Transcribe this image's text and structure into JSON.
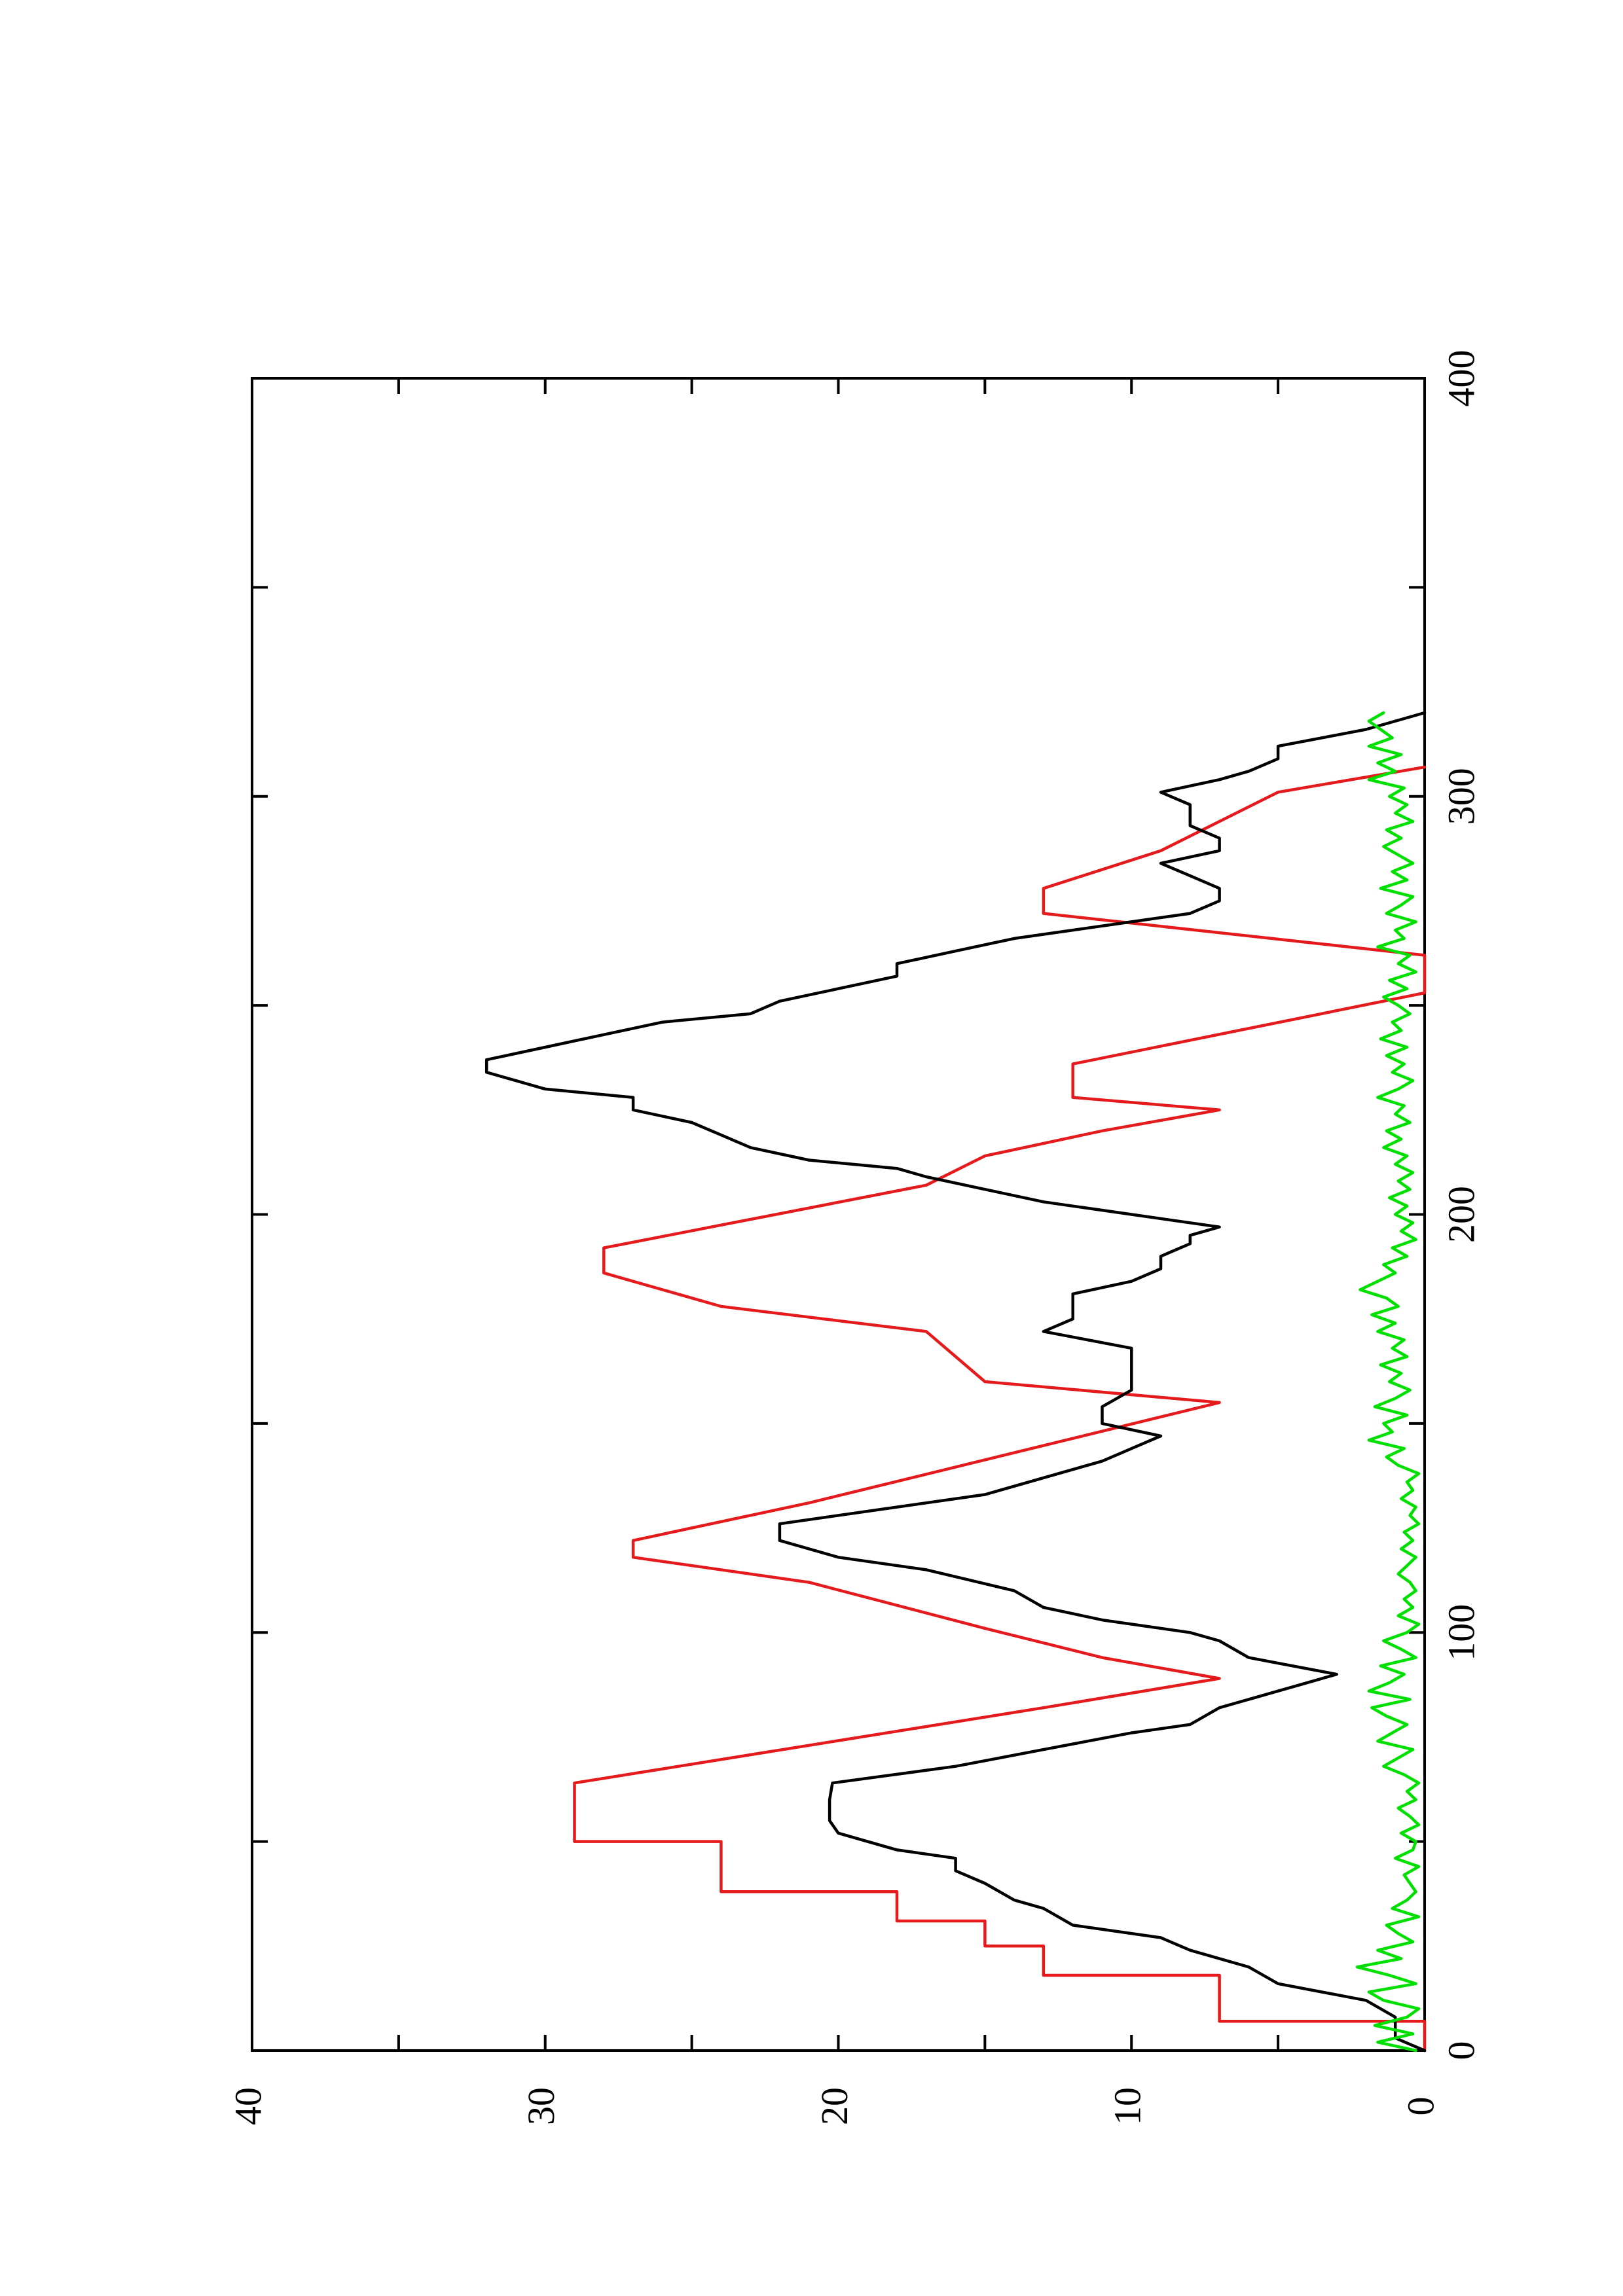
{
  "chart_data": {
    "type": "line",
    "orientation": "rotated-90-ccw",
    "title": "",
    "xlabel": "",
    "ylabel": "",
    "xlim": [
      0,
      400
    ],
    "ylim": [
      0,
      40
    ],
    "x_ticks": [
      0,
      50,
      100,
      150,
      200,
      250,
      300,
      350,
      400
    ],
    "x_tick_labels": [
      "0",
      "",
      "100",
      "",
      "200",
      "",
      "300",
      "",
      "400"
    ],
    "y_ticks": [
      0,
      5,
      10,
      15,
      20,
      25,
      30,
      35,
      40
    ],
    "y_tick_labels": [
      "0",
      "",
      "10",
      "",
      "20",
      "",
      "30",
      "",
      "40"
    ],
    "grid": false,
    "legend": "none",
    "series": [
      {
        "color": "#e41a1c",
        "kind": "step",
        "x": [
          0,
          7,
          7,
          18,
          18,
          25,
          25,
          31,
          31,
          38,
          38,
          50,
          50,
          54,
          54,
          64,
          64,
          82,
          82,
          89,
          89,
          94,
          94,
          101,
          101,
          112,
          112,
          118,
          118,
          122,
          122,
          131,
          131,
          155,
          155,
          160,
          160,
          172,
          172,
          178,
          178,
          186,
          186,
          192,
          192,
          207,
          207,
          214,
          214,
          220,
          220,
          225,
          225,
          228,
          228,
          236,
          236,
          253,
          253,
          262,
          262,
          272,
          272,
          278,
          278,
          287,
          287,
          301,
          301,
          307,
          307
        ],
        "y": [
          0,
          0,
          7,
          7,
          13,
          13,
          15,
          15,
          18,
          18,
          24,
          24,
          29,
          29,
          29,
          29,
          29,
          13,
          13,
          7,
          7,
          11,
          11,
          15,
          15,
          21,
          21,
          27,
          27,
          27,
          27,
          21,
          21,
          7,
          7,
          15,
          15,
          17,
          17,
          24,
          24,
          28,
          28,
          28,
          28,
          17,
          17,
          15,
          15,
          11,
          11,
          7,
          7,
          12,
          12,
          12,
          12,
          0,
          0,
          0,
          0,
          13,
          13,
          13,
          13,
          9,
          9,
          5,
          5,
          0,
          0
        ]
      },
      {
        "color": "#000000",
        "kind": "line",
        "x": [
          0,
          3,
          8,
          12,
          16,
          20,
          24,
          27,
          30,
          34,
          36,
          40,
          43,
          46,
          48,
          52,
          55,
          57,
          60,
          64,
          68,
          72,
          76,
          78,
          82,
          86,
          88,
          90,
          94,
          98,
          100,
          103,
          106,
          110,
          115,
          118,
          122,
          126,
          130,
          133,
          137,
          141,
          144,
          147,
          150,
          154,
          158,
          162,
          165,
          168,
          172,
          175,
          178,
          181,
          184,
          187,
          190,
          193,
          195,
          197,
          200,
          203,
          206,
          209,
          211,
          213,
          216,
          219,
          222,
          225,
          228,
          230,
          232,
          234,
          237,
          240,
          243,
          246,
          248,
          251,
          254,
          257,
          260,
          263,
          266,
          268,
          270,
          272,
          275,
          278,
          281,
          284,
          287,
          290,
          293,
          296,
          298,
          301,
          304,
          306,
          309,
          312,
          316,
          320
        ],
        "y": [
          0,
          1,
          1,
          2,
          5,
          6,
          8,
          9,
          12,
          13,
          14,
          15,
          16,
          16,
          18,
          20,
          20.3,
          20.3,
          20.3,
          20.2,
          16,
          13,
          10,
          8,
          7,
          5,
          4,
          3,
          6,
          7,
          8,
          11,
          13,
          14,
          17,
          20,
          22,
          22,
          18,
          15,
          13,
          11,
          10,
          9,
          11,
          11,
          10,
          10,
          10,
          10,
          13,
          12,
          12,
          12,
          10,
          9,
          9,
          8,
          8,
          7,
          10,
          13,
          15,
          17,
          18,
          21,
          23,
          24,
          25,
          27,
          27,
          30,
          31,
          32,
          32,
          30,
          28,
          26,
          23,
          22,
          20,
          18,
          18,
          16,
          14,
          12,
          10,
          8,
          7,
          7,
          8,
          9,
          7,
          7,
          8,
          8,
          8,
          9,
          7,
          6,
          5,
          5,
          2,
          0
        ]
      },
      {
        "color": "#00e000",
        "kind": "line",
        "x": [
          0,
          2,
          4,
          6,
          8,
          10,
          12,
          14,
          16,
          18,
          20,
          22,
          24,
          26,
          28,
          30,
          32,
          34,
          36,
          38,
          40,
          42,
          44,
          46,
          48,
          50,
          52,
          54,
          56,
          58,
          60,
          62,
          64,
          66,
          68,
          70,
          72,
          74,
          76,
          78,
          80,
          82,
          84,
          86,
          88,
          90,
          92,
          94,
          96,
          98,
          100,
          102,
          104,
          106,
          108,
          110,
          112,
          114,
          116,
          118,
          120,
          122,
          124,
          126,
          128,
          130,
          132,
          134,
          136,
          138,
          140,
          142,
          144,
          146,
          148,
          150,
          152,
          154,
          156,
          158,
          160,
          162,
          164,
          166,
          168,
          170,
          172,
          174,
          176,
          178,
          180,
          182,
          184,
          186,
          188,
          190,
          192,
          194,
          196,
          198,
          200,
          202,
          204,
          206,
          208,
          210,
          212,
          214,
          216,
          218,
          220,
          222,
          224,
          226,
          228,
          230,
          232,
          234,
          236,
          238,
          240,
          242,
          244,
          246,
          248,
          250,
          252,
          254,
          256,
          258,
          260,
          262,
          264,
          266,
          268,
          270,
          272,
          274,
          276,
          278,
          280,
          282,
          284,
          286,
          288,
          290,
          292,
          294,
          296,
          298,
          300,
          302,
          304,
          306,
          308,
          310,
          312,
          314,
          316,
          318,
          320
        ],
        "y": [
          0.3,
          1.6,
          0.4,
          1.7,
          0.6,
          0.2,
          1.4,
          1.9,
          0.3,
          1.2,
          2.3,
          0.8,
          1.6,
          0.4,
          0.9,
          1.3,
          0.2,
          1.1,
          0.6,
          0.3,
          0.5,
          0.7,
          0.2,
          1.0,
          0.4,
          0.3,
          0.8,
          0.2,
          0.5,
          0.9,
          0.3,
          0.6,
          0.2,
          0.7,
          1.4,
          0.9,
          0.4,
          1.6,
          1.1,
          0.6,
          1.3,
          1.8,
          0.5,
          1.9,
          1.2,
          0.7,
          1.5,
          0.3,
          0.8,
          1.4,
          0.6,
          0.2,
          0.9,
          0.4,
          0.7,
          0.3,
          0.5,
          0.9,
          0.6,
          0.3,
          0.8,
          0.4,
          0.7,
          0.2,
          0.5,
          0.3,
          0.8,
          0.4,
          0.6,
          0.2,
          0.9,
          1.3,
          0.7,
          1.9,
          1.1,
          1.4,
          0.6,
          1.7,
          1.0,
          0.5,
          1.2,
          0.8,
          1.5,
          0.6,
          1.1,
          0.7,
          1.6,
          1.0,
          1.8,
          0.9,
          1.3,
          2.2,
          1.6,
          1.0,
          1.4,
          0.6,
          1.1,
          0.3,
          0.8,
          0.4,
          1.0,
          0.6,
          1.2,
          0.5,
          0.9,
          0.4,
          1.0,
          0.6,
          1.4,
          0.8,
          1.3,
          0.5,
          1.0,
          0.7,
          1.6,
          0.9,
          0.4,
          1.1,
          0.7,
          1.3,
          0.6,
          1.5,
          0.8,
          1.1,
          0.5,
          0.9,
          1.4,
          0.6,
          1.2,
          0.3,
          0.9,
          0.5,
          1.6,
          0.7,
          1.0,
          0.3,
          1.3,
          0.8,
          0.4,
          1.5,
          0.6,
          1.1,
          0.4,
          0.9,
          1.4,
          0.8,
          1.3,
          0.4,
          1.0,
          0.6,
          1.2,
          0.7,
          1.9,
          1.0,
          1.6,
          0.8,
          1.9,
          1.1,
          1.5,
          1.9,
          1.4
        ]
      }
    ]
  }
}
